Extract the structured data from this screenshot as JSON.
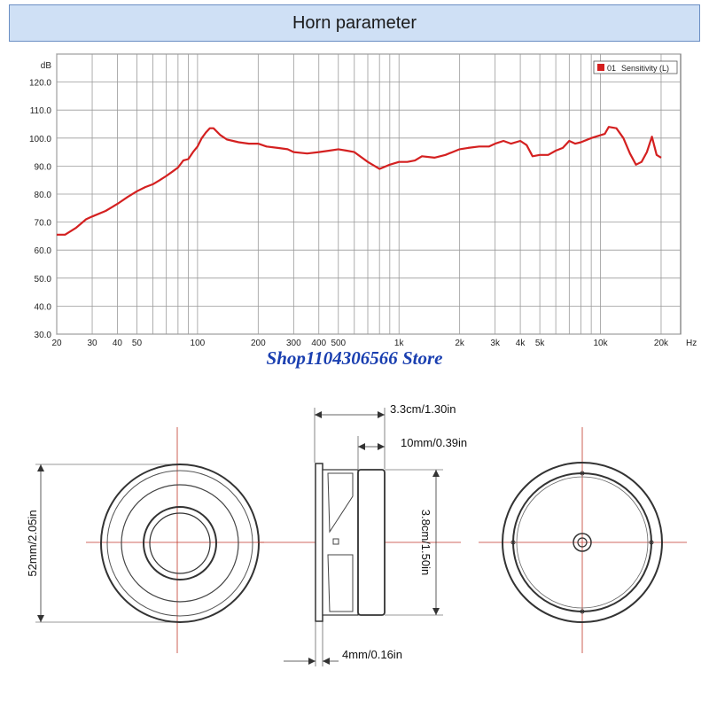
{
  "banner": {
    "title": "Horn parameter"
  },
  "store": {
    "label": "Shop1104306566 Store"
  },
  "chart_data": {
    "type": "line",
    "ylabel": "dB",
    "xlabel": "Hz",
    "x_scale": "log",
    "xlim": [
      20,
      25000
    ],
    "ylim": [
      30,
      130
    ],
    "grid": true,
    "legend_position": "top-right",
    "y_ticks": [
      "30.0",
      "40.0",
      "50.0",
      "60.0",
      "70.0",
      "80.0",
      "90.0",
      "100.0",
      "110.0",
      "120.0"
    ],
    "x_ticks": [
      {
        "v": 20,
        "label": "20"
      },
      {
        "v": 30,
        "label": "30"
      },
      {
        "v": 40,
        "label": "40"
      },
      {
        "v": 50,
        "label": "50"
      },
      {
        "v": 100,
        "label": "100"
      },
      {
        "v": 200,
        "label": "200"
      },
      {
        "v": 300,
        "label": "300"
      },
      {
        "v": 400,
        "label": "400"
      },
      {
        "v": 500,
        "label": "500"
      },
      {
        "v": 1000,
        "label": "1k"
      },
      {
        "v": 2000,
        "label": "2k"
      },
      {
        "v": 3000,
        "label": "3k"
      },
      {
        "v": 4000,
        "label": "4k"
      },
      {
        "v": 5000,
        "label": "5k"
      },
      {
        "v": 10000,
        "label": "10k"
      },
      {
        "v": 20000,
        "label": "20k"
      }
    ],
    "series": [
      {
        "name": "Sensitivity (L)",
        "legend_id": "01",
        "color": "#d42020",
        "x": [
          20,
          22,
          25,
          28,
          30,
          35,
          40,
          45,
          50,
          55,
          60,
          65,
          70,
          75,
          80,
          85,
          90,
          95,
          100,
          105,
          110,
          115,
          120,
          130,
          140,
          150,
          160,
          180,
          200,
          220,
          250,
          280,
          300,
          350,
          400,
          450,
          500,
          550,
          600,
          700,
          800,
          900,
          1000,
          1100,
          1200,
          1300,
          1500,
          1700,
          2000,
          2200,
          2500,
          2800,
          3000,
          3300,
          3600,
          4000,
          4300,
          4600,
          5000,
          5500,
          6000,
          6500,
          7000,
          7500,
          8000,
          9000,
          10000,
          10500,
          11000,
          12000,
          13000,
          14000,
          15000,
          16000,
          17000,
          18000,
          19000,
          20000
        ],
        "values": [
          65.5,
          65.5,
          68,
          71,
          72,
          74,
          76.5,
          79,
          81,
          82.5,
          83.5,
          85,
          86.5,
          88,
          89.5,
          92,
          92.5,
          95,
          97,
          100,
          102,
          103.5,
          103.5,
          101,
          99.5,
          99,
          98.5,
          98,
          98,
          97,
          96.5,
          96,
          95,
          94.5,
          95,
          95.5,
          96,
          95.5,
          95,
          91.5,
          89,
          90.5,
          91.5,
          91.5,
          92,
          93.5,
          93,
          94,
          96,
          96.5,
          97,
          97,
          98,
          99,
          98,
          99,
          97.5,
          93.5,
          94,
          94,
          95.5,
          96.5,
          99,
          98,
          98.5,
          100,
          101,
          101.5,
          104,
          103.5,
          100,
          94.5,
          90.5,
          91.5,
          95,
          100.5,
          94,
          93
        ]
      }
    ]
  },
  "dims": {
    "d_52": "52mm/2.05in",
    "d_33": "3.3cm/1.30in",
    "d_10": "10mm/0.39in",
    "d_38": "3.8cm/1.50in",
    "d_4": "4mm/0.16in"
  }
}
